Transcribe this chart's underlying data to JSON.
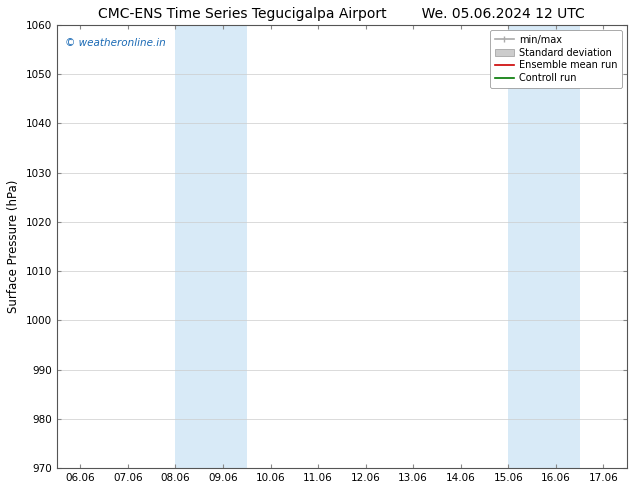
{
  "title_left": "CMC-ENS Time Series Tegucigalpa Airport",
  "title_right": "We. 05.06.2024 12 UTC",
  "ylabel": "Surface Pressure (hPa)",
  "ylim": [
    970,
    1060
  ],
  "yticks": [
    970,
    980,
    990,
    1000,
    1010,
    1020,
    1030,
    1040,
    1050,
    1060
  ],
  "xtick_labels": [
    "06.06",
    "07.06",
    "08.06",
    "09.06",
    "10.06",
    "11.06",
    "12.06",
    "13.06",
    "14.06",
    "15.06",
    "16.06",
    "17.06"
  ],
  "xtick_positions": [
    0,
    1,
    2,
    3,
    4,
    5,
    6,
    7,
    8,
    9,
    10,
    11
  ],
  "xlim": [
    -0.5,
    11.5
  ],
  "shaded_regions": [
    {
      "xmin": 2.0,
      "xmax": 3.5,
      "color": "#d8eaf7"
    },
    {
      "xmin": 9.0,
      "xmax": 10.5,
      "color": "#d8eaf7"
    }
  ],
  "watermark_text": "© weatheronline.in",
  "watermark_color": "#1a6ab5",
  "legend_entries": [
    {
      "label": "min/max",
      "color": "#aaaaaa",
      "linewidth": 1.2
    },
    {
      "label": "Standard deviation",
      "color": "#cccccc",
      "linewidth": 6
    },
    {
      "label": "Ensemble mean run",
      "color": "#cc0000",
      "linewidth": 1.2
    },
    {
      "label": "Controll run",
      "color": "#007700",
      "linewidth": 1.2
    }
  ],
  "bg_color": "#ffffff",
  "grid_color": "#cccccc",
  "title_fontsize": 10,
  "tick_fontsize": 7.5,
  "ylabel_fontsize": 8.5,
  "watermark_fontsize": 7.5,
  "legend_fontsize": 7
}
